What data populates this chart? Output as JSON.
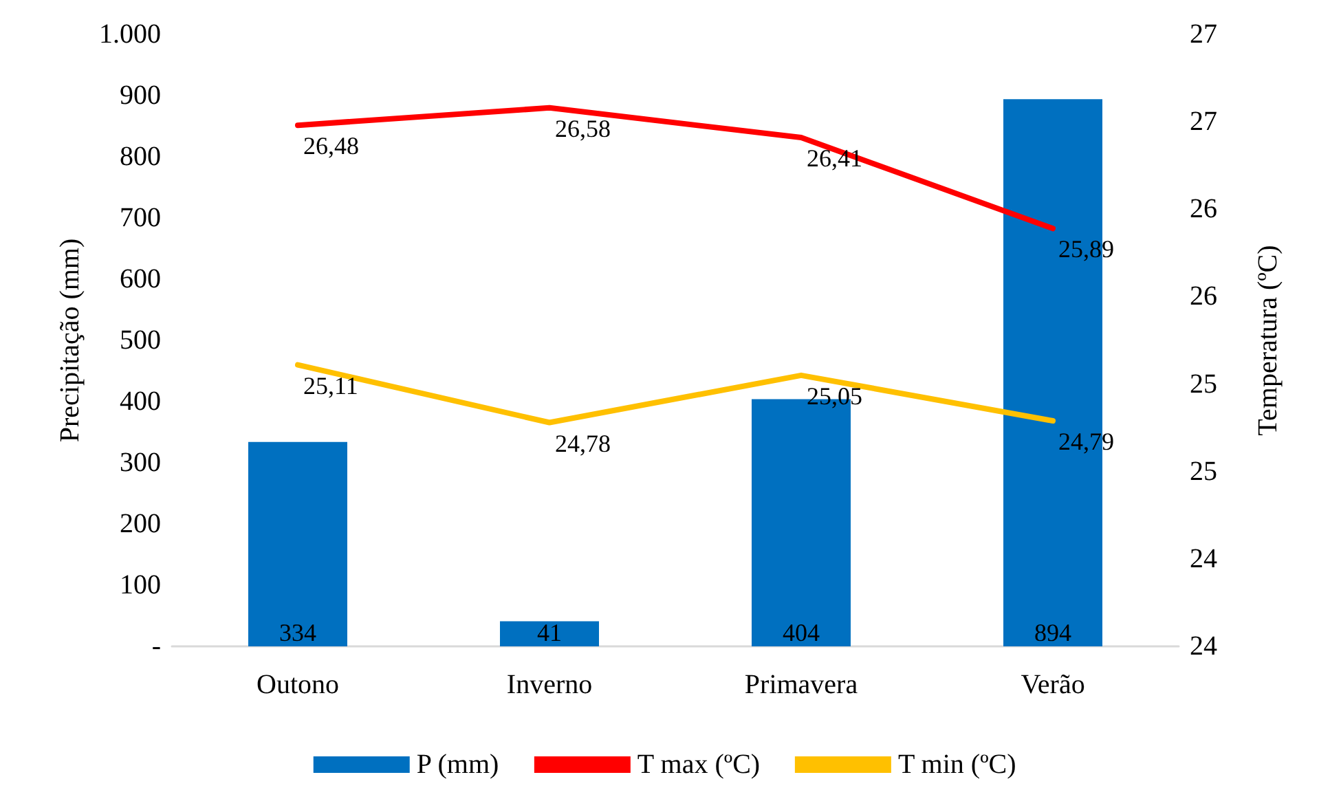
{
  "chart_data": {
    "type": "bar",
    "categories": [
      "Outono",
      "Inverno",
      "Primavera",
      "Verão"
    ],
    "ylabel": "Precipitação (mm)",
    "y2label": "Temperatura (ºC)",
    "series": [
      {
        "name": "P (mm)",
        "color": "#0070c0",
        "values": [
          334,
          41,
          404,
          894
        ],
        "value_labels": [
          "334",
          "41",
          "404",
          "894"
        ]
      },
      {
        "name": "T max (ºC)",
        "type": "line",
        "axis": "y2",
        "color": "#ff0000",
        "values": [
          26.48,
          26.58,
          26.41,
          25.89
        ],
        "value_labels": [
          "26,48",
          "26,58",
          "26,41",
          "25,89"
        ]
      },
      {
        "name": "T min (ºC)",
        "type": "line",
        "axis": "y2",
        "color": "#ffc000",
        "values": [
          25.11,
          24.78,
          25.05,
          24.79
        ],
        "value_labels": [
          "25,11",
          "24,78",
          "25,05",
          "24,79"
        ]
      }
    ],
    "ylim": [
      0,
      1000
    ],
    "yticks": [
      {
        "value": 0,
        "label": "-"
      },
      100,
      200,
      300,
      400,
      500,
      600,
      700,
      800,
      900,
      {
        "value": 1000,
        "label": "1.000"
      }
    ],
    "y2lim": [
      23.5,
      27
    ],
    "y2ticks": [
      {
        "value": 23.5,
        "label": "24"
      },
      {
        "value": 24,
        "label": "24"
      },
      {
        "value": 24.5,
        "label": "25"
      },
      {
        "value": 25,
        "label": "25"
      },
      {
        "value": 25.5,
        "label": "26"
      },
      {
        "value": 26,
        "label": "26"
      },
      {
        "value": 26.5,
        "label": "27"
      },
      {
        "value": 27,
        "label": "27"
      }
    ],
    "legend": "bottom",
    "grid": false,
    "marker": "none",
    "line_style": "solid"
  }
}
